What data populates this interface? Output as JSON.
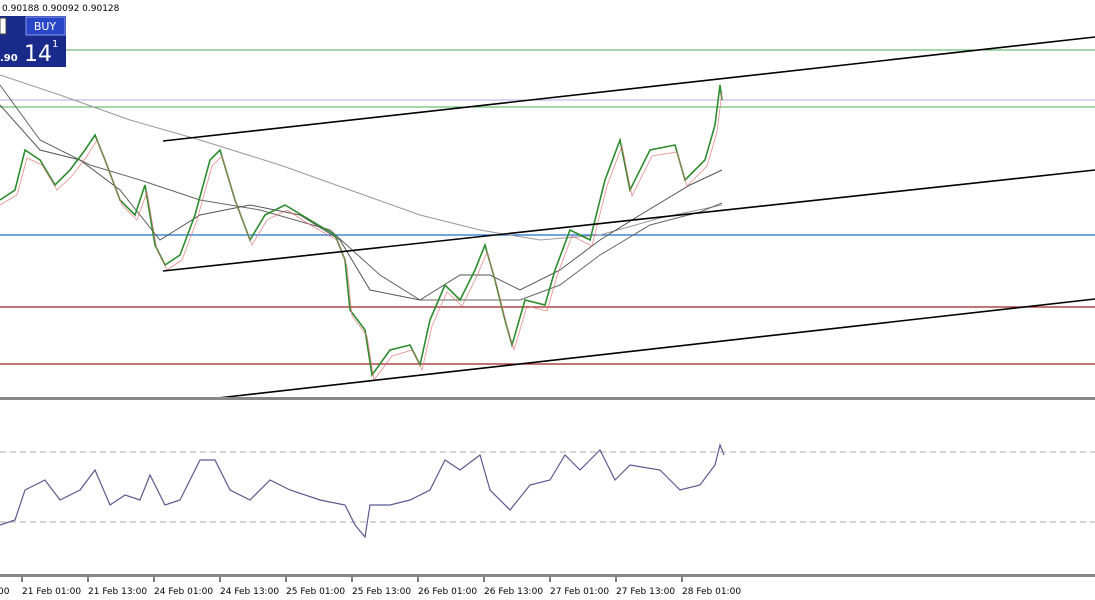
{
  "toolbar": {
    "ohlc": "0.90188 0.90092 0.90128"
  },
  "trade": {
    "button": "BUY",
    "price_prefix": ".90",
    "price_big": "14",
    "price_sup": "1"
  },
  "time_axis": [
    "00",
    "21 Feb 01:00",
    "21 Feb 13:00",
    "24 Feb 01:00",
    "24 Feb 13:00",
    "25 Feb 01:00",
    "25 Feb 13:00",
    "26 Feb 01:00",
    "26 Feb 13:00",
    "27 Feb 01:00",
    "27 Feb 13:00",
    "28 Feb 01:00"
  ]
}
